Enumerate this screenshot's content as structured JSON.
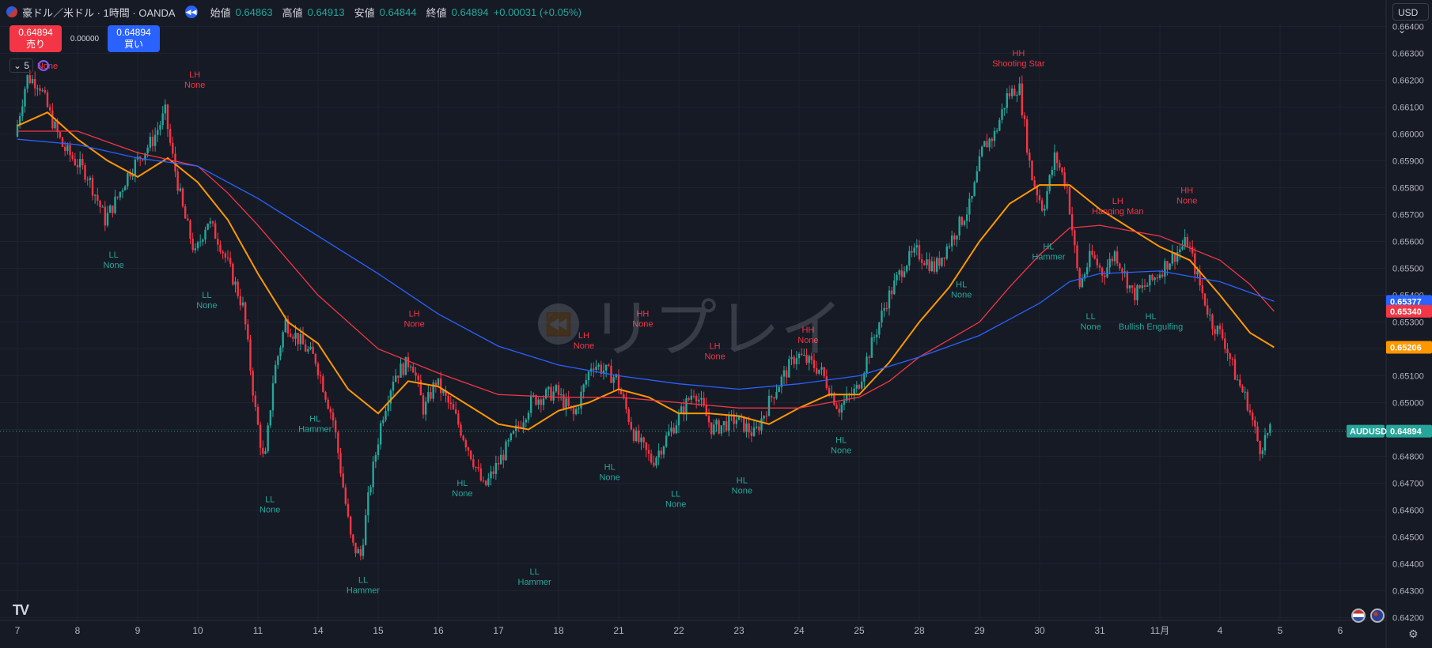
{
  "header": {
    "title": "豪ドル／米ドル · 1時間 · OANDA",
    "open_label": "始値",
    "open": "0.64863",
    "high_label": "高値",
    "high": "0.64913",
    "low_label": "安値",
    "low": "0.64844",
    "close_label": "終値",
    "close": "0.64894",
    "change": "+0.00031 (+0.05%)"
  },
  "trade": {
    "sell_price": "0.64894",
    "sell_label": "売り",
    "spread": "0.00000",
    "buy_price": "0.64894",
    "buy_label": "買い"
  },
  "indicator": {
    "count": "5",
    "first_label": "None"
  },
  "currency": "USD",
  "watermark": "リプレイ",
  "colors": {
    "up": "#26a69a",
    "down": "#f23645",
    "ma_fast": "#ff9800",
    "ma_mid": "#f23645",
    "ma_slow": "#2962ff",
    "bg": "#161a25"
  },
  "chart_data": {
    "type": "candlestick",
    "symbol": "AUDUSD",
    "y_ticks": [
      "0.66400",
      "0.66300",
      "0.66200",
      "0.66100",
      "0.66000",
      "0.65900",
      "0.65800",
      "0.65700",
      "0.65600",
      "0.65500",
      "0.65400",
      "0.65300",
      "0.65200",
      "0.65100",
      "0.65000",
      "0.64900",
      "0.64800",
      "0.64700",
      "0.64600",
      "0.64500",
      "0.64400",
      "0.64300",
      "0.64200"
    ],
    "ylim": [
      0.6419,
      0.6641
    ],
    "x_ticks": [
      "7",
      "8",
      "9",
      "10",
      "11",
      "14",
      "15",
      "16",
      "17",
      "18",
      "21",
      "22",
      "23",
      "24",
      "25",
      "28",
      "29",
      "30",
      "31",
      "11月",
      "4",
      "5",
      "6"
    ],
    "price_path": [
      [
        0,
        0.6599
      ],
      [
        0.2,
        0.6621
      ],
      [
        0.4,
        0.6619
      ],
      [
        0.6,
        0.6606
      ],
      [
        0.8,
        0.6595
      ],
      [
        1,
        0.659
      ],
      [
        1.2,
        0.6585
      ],
      [
        1.4,
        0.6574
      ],
      [
        1.5,
        0.6568
      ],
      [
        1.7,
        0.6576
      ],
      [
        1.9,
        0.6586
      ],
      [
        2.1,
        0.6592
      ],
      [
        2.3,
        0.6598
      ],
      [
        2.5,
        0.6608
      ],
      [
        2.6,
        0.6594
      ],
      [
        2.8,
        0.6571
      ],
      [
        3,
        0.6555
      ],
      [
        3.2,
        0.6568
      ],
      [
        3.4,
        0.656
      ],
      [
        3.6,
        0.6548
      ],
      [
        3.8,
        0.6535
      ],
      [
        4,
        0.6497
      ],
      [
        4.15,
        0.6476
      ],
      [
        4.3,
        0.651
      ],
      [
        4.5,
        0.653
      ],
      [
        4.8,
        0.6521
      ],
      [
        5,
        0.6516
      ],
      [
        5.3,
        0.6493
      ],
      [
        5.6,
        0.6447
      ],
      [
        5.75,
        0.6443
      ],
      [
        5.9,
        0.6468
      ],
      [
        6.1,
        0.6494
      ],
      [
        6.3,
        0.651
      ],
      [
        6.6,
        0.6516
      ],
      [
        6.8,
        0.6497
      ],
      [
        7,
        0.6508
      ],
      [
        7.3,
        0.6496
      ],
      [
        7.6,
        0.648
      ],
      [
        7.8,
        0.6468
      ],
      [
        8,
        0.6476
      ],
      [
        8.3,
        0.6488
      ],
      [
        8.6,
        0.6501
      ],
      [
        9,
        0.6504
      ],
      [
        9.3,
        0.6495
      ],
      [
        9.6,
        0.6515
      ],
      [
        10,
        0.6509
      ],
      [
        10.3,
        0.6488
      ],
      [
        10.6,
        0.6478
      ],
      [
        11,
        0.6493
      ],
      [
        11.3,
        0.6505
      ],
      [
        11.6,
        0.649
      ],
      [
        12,
        0.6494
      ],
      [
        12.3,
        0.6488
      ],
      [
        12.6,
        0.6503
      ],
      [
        13,
        0.6518
      ],
      [
        13.4,
        0.6512
      ],
      [
        13.7,
        0.6498
      ],
      [
        14,
        0.6505
      ],
      [
        14.3,
        0.6525
      ],
      [
        14.5,
        0.6538
      ],
      [
        14.8,
        0.6552
      ],
      [
        15,
        0.6556
      ],
      [
        15.3,
        0.655
      ],
      [
        15.6,
        0.6562
      ],
      [
        15.9,
        0.6574
      ],
      [
        16.1,
        0.6595
      ],
      [
        16.3,
        0.66
      ],
      [
        16.5,
        0.6614
      ],
      [
        16.7,
        0.6618
      ],
      [
        16.9,
        0.6585
      ],
      [
        17.1,
        0.6572
      ],
      [
        17.3,
        0.6592
      ],
      [
        17.5,
        0.658
      ],
      [
        17.7,
        0.6543
      ],
      [
        17.9,
        0.6555
      ],
      [
        18.1,
        0.6548
      ],
      [
        18.3,
        0.6556
      ],
      [
        18.6,
        0.654
      ],
      [
        18.9,
        0.6545
      ],
      [
        19.2,
        0.6553
      ],
      [
        19.5,
        0.656
      ],
      [
        19.7,
        0.6544
      ],
      [
        19.9,
        0.653
      ],
      [
        20.1,
        0.6524
      ],
      [
        20.3,
        0.651
      ],
      [
        20.5,
        0.65
      ],
      [
        20.7,
        0.6483
      ],
      [
        20.85,
        0.6489
      ]
    ],
    "series": [
      {
        "name": "",
        "color": "#ff9800",
        "values": [
          [
            0,
            0.6603
          ],
          [
            0.5,
            0.6608
          ],
          [
            1,
            0.6598
          ],
          [
            1.5,
            0.659
          ],
          [
            2,
            0.6584
          ],
          [
            2.5,
            0.6591
          ],
          [
            3,
            0.6582
          ],
          [
            3.5,
            0.6568
          ],
          [
            4,
            0.6548
          ],
          [
            4.5,
            0.653
          ],
          [
            5,
            0.6522
          ],
          [
            5.5,
            0.6505
          ],
          [
            6,
            0.6496
          ],
          [
            6.5,
            0.6508
          ],
          [
            7,
            0.6506
          ],
          [
            7.5,
            0.6499
          ],
          [
            8,
            0.6492
          ],
          [
            8.5,
            0.649
          ],
          [
            9,
            0.6497
          ],
          [
            9.5,
            0.65
          ],
          [
            10,
            0.6505
          ],
          [
            10.5,
            0.6502
          ],
          [
            11,
            0.6496
          ],
          [
            11.5,
            0.6496
          ],
          [
            12,
            0.6495
          ],
          [
            12.5,
            0.6492
          ],
          [
            13,
            0.6498
          ],
          [
            13.5,
            0.6503
          ],
          [
            14,
            0.6503
          ],
          [
            14.5,
            0.6515
          ],
          [
            15,
            0.653
          ],
          [
            15.5,
            0.6543
          ],
          [
            16,
            0.656
          ],
          [
            16.5,
            0.6574
          ],
          [
            17,
            0.6581
          ],
          [
            17.5,
            0.6581
          ],
          [
            18,
            0.6572
          ],
          [
            18.5,
            0.6565
          ],
          [
            19,
            0.6558
          ],
          [
            19.5,
            0.6553
          ],
          [
            20,
            0.654
          ],
          [
            20.5,
            0.6526
          ],
          [
            20.9,
            0.65206
          ]
        ]
      },
      {
        "name": "",
        "color": "#f23645",
        "values": [
          [
            0,
            0.6601
          ],
          [
            1,
            0.6601
          ],
          [
            2,
            0.6593
          ],
          [
            3,
            0.6588
          ],
          [
            3.5,
            0.6578
          ],
          [
            4,
            0.6566
          ],
          [
            4.5,
            0.6553
          ],
          [
            5,
            0.654
          ],
          [
            6,
            0.652
          ],
          [
            7,
            0.6511
          ],
          [
            8,
            0.6503
          ],
          [
            9,
            0.6502
          ],
          [
            10,
            0.6502
          ],
          [
            11,
            0.65
          ],
          [
            12,
            0.6498
          ],
          [
            13,
            0.6498
          ],
          [
            14,
            0.6502
          ],
          [
            14.5,
            0.6508
          ],
          [
            15,
            0.6517
          ],
          [
            16,
            0.653
          ],
          [
            16.5,
            0.6543
          ],
          [
            17,
            0.6555
          ],
          [
            17.5,
            0.6565
          ],
          [
            18,
            0.6566
          ],
          [
            19,
            0.6562
          ],
          [
            20,
            0.6553
          ],
          [
            20.5,
            0.6544
          ],
          [
            20.9,
            0.6534
          ]
        ]
      },
      {
        "name": "",
        "color": "#2962ff",
        "values": [
          [
            0,
            0.6598
          ],
          [
            1,
            0.6596
          ],
          [
            2,
            0.6591
          ],
          [
            3,
            0.6588
          ],
          [
            4,
            0.6576
          ],
          [
            5,
            0.6562
          ],
          [
            6,
            0.6548
          ],
          [
            7,
            0.6533
          ],
          [
            8,
            0.6521
          ],
          [
            9,
            0.6514
          ],
          [
            10,
            0.651
          ],
          [
            11,
            0.6507
          ],
          [
            12,
            0.6505
          ],
          [
            13,
            0.6507
          ],
          [
            14,
            0.651
          ],
          [
            15,
            0.6517
          ],
          [
            16,
            0.6525
          ],
          [
            17,
            0.6537
          ],
          [
            17.5,
            0.6545
          ],
          [
            18,
            0.6548
          ],
          [
            19,
            0.6549
          ],
          [
            20,
            0.6545
          ],
          [
            20.5,
            0.6541
          ],
          [
            20.9,
            0.65377
          ]
        ]
      }
    ],
    "price_labels": [
      {
        "value": "0.65377",
        "price": 0.65377,
        "color": "#2962ff"
      },
      {
        "value": "0.65340",
        "price": 0.6534,
        "color": "#f23645"
      },
      {
        "value": "0.65206",
        "price": 0.65206,
        "color": "#ff9800"
      },
      {
        "value": "0.64894",
        "price": 0.64894,
        "color": "#26a69a",
        "tag": "AUDUSD"
      }
    ],
    "annotations": [
      {
        "x": 0.5,
        "y": 0.6628,
        "line1": "",
        "line2": "None",
        "color": "#f23645"
      },
      {
        "x": 2.95,
        "y": 0.6621,
        "line1": "LH",
        "line2": "None",
        "color": "#f23645"
      },
      {
        "x": 1.6,
        "y": 0.6554,
        "line1": "LL",
        "line2": "None",
        "color": "#26a69a"
      },
      {
        "x": 3.15,
        "y": 0.6539,
        "line1": "LL",
        "line2": "None",
        "color": "#26a69a"
      },
      {
        "x": 4.2,
        "y": 0.6463,
        "line1": "LL",
        "line2": "None",
        "color": "#26a69a"
      },
      {
        "x": 4.95,
        "y": 0.6493,
        "line1": "HL",
        "line2": "Hammer",
        "color": "#26a69a"
      },
      {
        "x": 5.75,
        "y": 0.6433,
        "line1": "LL",
        "line2": "Hammer",
        "color": "#26a69a"
      },
      {
        "x": 6.6,
        "y": 0.6532,
        "line1": "LH",
        "line2": "None",
        "color": "#f23645"
      },
      {
        "x": 7.4,
        "y": 0.6469,
        "line1": "HL",
        "line2": "None",
        "color": "#26a69a"
      },
      {
        "x": 8.6,
        "y": 0.6436,
        "line1": "LL",
        "line2": "Hammer",
        "color": "#26a69a"
      },
      {
        "x": 9.42,
        "y": 0.6524,
        "line1": "LH",
        "line2": "None",
        "color": "#f23645"
      },
      {
        "x": 9.85,
        "y": 0.6475,
        "line1": "HL",
        "line2": "None",
        "color": "#26a69a"
      },
      {
        "x": 10.4,
        "y": 0.6532,
        "line1": "HH",
        "line2": "None",
        "color": "#f23645"
      },
      {
        "x": 10.95,
        "y": 0.6465,
        "line1": "LL",
        "line2": "None",
        "color": "#26a69a"
      },
      {
        "x": 11.6,
        "y": 0.652,
        "line1": "LH",
        "line2": "None",
        "color": "#f23645"
      },
      {
        "x": 12.05,
        "y": 0.647,
        "line1": "HL",
        "line2": "None",
        "color": "#26a69a"
      },
      {
        "x": 13.15,
        "y": 0.6526,
        "line1": "HH",
        "line2": "None",
        "color": "#f23645"
      },
      {
        "x": 13.7,
        "y": 0.6485,
        "line1": "HL",
        "line2": "None",
        "color": "#26a69a"
      },
      {
        "x": 15.7,
        "y": 0.6543,
        "line1": "HL",
        "line2": "None",
        "color": "#26a69a"
      },
      {
        "x": 16.65,
        "y": 0.6629,
        "line1": "HH",
        "line2": "Shooting Star",
        "color": "#f23645"
      },
      {
        "x": 17.15,
        "y": 0.6557,
        "line1": "HL",
        "line2": "Hammer",
        "color": "#26a69a"
      },
      {
        "x": 18.3,
        "y": 0.6574,
        "line1": "LH",
        "line2": "Hanging Man",
        "color": "#f23645"
      },
      {
        "x": 17.85,
        "y": 0.6531,
        "line1": "LL",
        "line2": "None",
        "color": "#26a69a"
      },
      {
        "x": 18.85,
        "y": 0.6531,
        "line1": "HL",
        "line2": "Bullish Engulfing",
        "color": "#26a69a"
      },
      {
        "x": 19.45,
        "y": 0.6578,
        "line1": "HH",
        "line2": "None",
        "color": "#f23645"
      }
    ]
  }
}
